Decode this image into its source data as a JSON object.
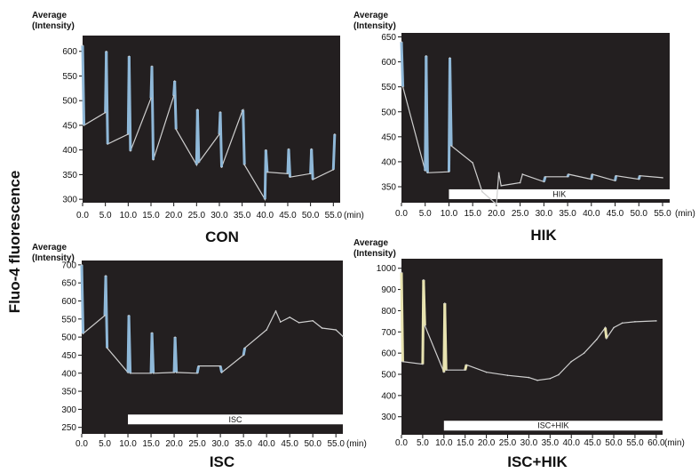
{
  "figure": {
    "y_axis_label": "Fluo-4 fluorescence"
  },
  "chart_data": [
    {
      "type": "line",
      "title": "CON",
      "ylabel_line1": "Average",
      "ylabel_line2": "(Intensity)",
      "x_unit": "(min)",
      "xlim": [
        0,
        56.5
      ],
      "ylim": [
        293,
        632
      ],
      "yticks": [
        300,
        350,
        400,
        450,
        500,
        550,
        600
      ],
      "xticks": [
        "0.0",
        "5.0",
        "10.0",
        "15.0",
        "20.0",
        "25.0",
        "30.0",
        "35.0",
        "40.0",
        "45.0",
        "50.0",
        "55.0"
      ],
      "background": "#231f20",
      "trace_color": "#cfcfcf",
      "spike_color": "#8fb8d8",
      "series": [
        {
          "values": [
            [
              0,
              612
            ],
            [
              0.3,
              450
            ],
            [
              5,
              476
            ],
            [
              5.2,
              600
            ],
            [
              5.5,
              412
            ],
            [
              10,
              432
            ],
            [
              10.2,
              590
            ],
            [
              10.5,
              398
            ],
            [
              15,
              505
            ],
            [
              15.2,
              570
            ],
            [
              15.5,
              380
            ],
            [
              20,
              510
            ],
            [
              20.2,
              540
            ],
            [
              20.5,
              442
            ],
            [
              25,
              370
            ],
            [
              25.2,
              482
            ],
            [
              25.5,
              375
            ],
            [
              30,
              432
            ],
            [
              30.2,
              477
            ],
            [
              30.5,
              365
            ],
            [
              35,
              478
            ],
            [
              35.2,
              481
            ],
            [
              35.5,
              370
            ],
            [
              40,
              300
            ],
            [
              40.2,
              400
            ],
            [
              40.5,
              355
            ],
            [
              45,
              352
            ],
            [
              45.2,
              402
            ],
            [
              45.5,
              345
            ],
            [
              50,
              352
            ],
            [
              50.2,
              402
            ],
            [
              50.5,
              340
            ],
            [
              55,
              360
            ],
            [
              55.3,
              432
            ]
          ]
        }
      ],
      "bar": null
    },
    {
      "type": "line",
      "title": "HIK",
      "ylabel_line1": "Average",
      "ylabel_line2": "(Intensity)",
      "x_unit": "(min)",
      "xlim": [
        0,
        56.5
      ],
      "ylim": [
        318,
        658
      ],
      "yticks": [
        350,
        400,
        450,
        500,
        550,
        600,
        650
      ],
      "xticks": [
        "0.0",
        "5.0",
        "10.0",
        "15.0",
        "20.0",
        "25.0",
        "30.0",
        "35.0",
        "40.0",
        "45.0",
        "50.0",
        "55.0"
      ],
      "background": "#231f20",
      "trace_color": "#cfcfcf",
      "spike_color": "#8fb8d8",
      "series": [
        {
          "values": [
            [
              0,
              640
            ],
            [
              0.3,
              550
            ],
            [
              5,
              382
            ],
            [
              5.2,
              612
            ],
            [
              5.5,
              378
            ],
            [
              10,
              380
            ],
            [
              10.2,
              608
            ],
            [
              10.5,
              432
            ],
            [
              15,
              398
            ],
            [
              17,
              340
            ],
            [
              20,
              315
            ],
            [
              20.5,
              378
            ],
            [
              21,
              352
            ],
            [
              25,
              358
            ],
            [
              25.5,
              375
            ],
            [
              30,
              360
            ],
            [
              30.3,
              370
            ],
            [
              35,
              370
            ],
            [
              35.2,
              375
            ],
            [
              40,
              365
            ],
            [
              40.2,
              375
            ],
            [
              45,
              362
            ],
            [
              45.2,
              372
            ],
            [
              50,
              365
            ],
            [
              50.2,
              372
            ],
            [
              55,
              368
            ]
          ]
        }
      ],
      "bar": {
        "label": "HIK",
        "x_start": 10,
        "x_end": 56.5,
        "y": 335
      }
    },
    {
      "type": "line",
      "title": "ISC",
      "ylabel_line1": "Average",
      "ylabel_line2": "(Intensity)",
      "x_unit": "(min)",
      "xlim": [
        0,
        56.5
      ],
      "ylim": [
        232,
        712
      ],
      "yticks": [
        250,
        300,
        350,
        400,
        450,
        500,
        550,
        600,
        650,
        700
      ],
      "xticks": [
        "0.0",
        "5.0",
        "10.0",
        "15.0",
        "20.0",
        "25.0",
        "30.0",
        "35.0",
        "40.0",
        "45.0",
        "50.0",
        "55.0"
      ],
      "background": "#231f20",
      "trace_color": "#cfcfcf",
      "spike_color": "#8fb8d8",
      "series": [
        {
          "values": [
            [
              0,
              700
            ],
            [
              0.3,
              510
            ],
            [
              5,
              560
            ],
            [
              5.2,
              670
            ],
            [
              5.5,
              470
            ],
            [
              10,
              402
            ],
            [
              10.2,
              560
            ],
            [
              10.5,
              400
            ],
            [
              15,
              400
            ],
            [
              15.2,
              512
            ],
            [
              15.5,
              400
            ],
            [
              20,
              402
            ],
            [
              20.2,
              500
            ],
            [
              20.5,
              402
            ],
            [
              25,
              400
            ],
            [
              25.3,
              420
            ],
            [
              30,
              420
            ],
            [
              30.3,
              402
            ],
            [
              35,
              450
            ],
            [
              35.3,
              470
            ],
            [
              40,
              520
            ],
            [
              42,
              572
            ],
            [
              43,
              542
            ],
            [
              45,
              555
            ],
            [
              47,
              540
            ],
            [
              50,
              545
            ],
            [
              52,
              525
            ],
            [
              55,
              520
            ],
            [
              56.5,
              502
            ]
          ]
        }
      ],
      "bar": {
        "label": "ISC",
        "x_start": 10,
        "x_end": 56.5,
        "y": 272
      }
    },
    {
      "type": "line",
      "title": "ISC+HIK",
      "ylabel_line1": "Average",
      "ylabel_line2": "(Intensity)",
      "x_unit": "(min)",
      "xlim": [
        0,
        61.5
      ],
      "ylim": [
        215,
        1045
      ],
      "yticks": [
        300,
        400,
        500,
        600,
        700,
        800,
        900,
        1000
      ],
      "xticks": [
        "0.0",
        "5.0",
        "10.0",
        "15.0",
        "20.0",
        "25.0",
        "30.0",
        "35.0",
        "40.0",
        "45.0",
        "50.0",
        "55.0",
        "60.0"
      ],
      "background": "#231f20",
      "trace_color": "#cfcfcf",
      "spike_color": "#e8e3b0",
      "series": [
        {
          "values": [
            [
              0,
              980
            ],
            [
              0.3,
              560
            ],
            [
              5,
              548
            ],
            [
              5.2,
              945
            ],
            [
              5.5,
              730
            ],
            [
              10,
              510
            ],
            [
              10.2,
              835
            ],
            [
              10.5,
              520
            ],
            [
              15,
              520
            ],
            [
              15.3,
              545
            ],
            [
              20,
              510
            ],
            [
              25,
              495
            ],
            [
              30,
              485
            ],
            [
              32,
              472
            ],
            [
              35,
              480
            ],
            [
              37,
              498
            ],
            [
              40,
              560
            ],
            [
              43,
              600
            ],
            [
              46,
              665
            ],
            [
              48,
              720
            ],
            [
              48.3,
              670
            ],
            [
              50,
              720
            ],
            [
              52,
              742
            ],
            [
              55,
              748
            ],
            [
              60,
              752
            ]
          ]
        }
      ],
      "bar": {
        "label": "ISC+HIK",
        "x_start": 10,
        "x_end": 61.5,
        "y": 258
      }
    }
  ]
}
